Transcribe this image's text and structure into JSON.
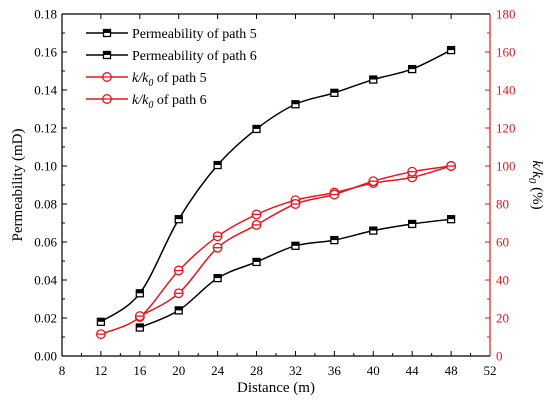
{
  "chart_data": {
    "type": "line",
    "xlabel": "Distance (m)",
    "ylabel_left": "Permeability (mD)",
    "ylabel_right": {
      "base": "k/k",
      "sub": "0",
      "unit": " (%)"
    },
    "xlim": [
      8,
      52
    ],
    "ylim_left": [
      0,
      0.18
    ],
    "ylim_right": [
      0,
      180
    ],
    "x_ticks": [
      8,
      12,
      16,
      20,
      24,
      28,
      32,
      36,
      40,
      44,
      48,
      52
    ],
    "y_left_ticks": [
      "0.00",
      "0.02",
      "0.04",
      "0.06",
      "0.08",
      "0.10",
      "0.12",
      "0.14",
      "0.16",
      "0.18"
    ],
    "y_right_ticks": [
      "0",
      "20",
      "40",
      "60",
      "80",
      "100",
      "120",
      "140",
      "160",
      "180"
    ],
    "grid": false,
    "legend_position": "top-left",
    "x": [
      12,
      16,
      20,
      24,
      28,
      32,
      36,
      40,
      44,
      48
    ],
    "series": [
      {
        "name": "Permeability of path 5",
        "axis": "left",
        "color": "#000000",
        "marker": "square",
        "x": [
          12,
          16,
          20,
          24,
          28,
          32,
          36,
          40,
          44,
          48
        ],
        "values": [
          0.018,
          0.033,
          0.072,
          0.1005,
          0.1195,
          0.1325,
          0.1385,
          0.1455,
          0.151,
          0.161
        ]
      },
      {
        "name": "Permeability of path 6",
        "axis": "left",
        "color": "#000000",
        "marker": "square",
        "x": [
          16,
          20,
          24,
          28,
          32,
          36,
          40,
          44,
          48
        ],
        "values": [
          0.015,
          0.024,
          0.041,
          0.0495,
          0.058,
          0.061,
          0.066,
          0.0695,
          0.072
        ]
      },
      {
        "name_parts": {
          "base": "k/k",
          "sub": "0",
          "rest": " of path 5"
        },
        "axis": "right",
        "color": "#e8141c",
        "marker": "circle",
        "x": [
          12,
          16,
          20,
          24,
          28,
          32,
          36,
          40,
          44,
          48
        ],
        "values": [
          11.5,
          20.5,
          45,
          63,
          74.5,
          82,
          86,
          91,
          94,
          100
        ]
      },
      {
        "name_parts": {
          "base": "k/k",
          "sub": "0",
          "rest": " of path 6"
        },
        "axis": "right",
        "color": "#e8141c",
        "marker": "circle",
        "x": [
          16,
          20,
          24,
          28,
          32,
          36,
          40,
          44,
          48
        ],
        "values": [
          21,
          33,
          57,
          69,
          80,
          85,
          92,
          97,
          100
        ]
      }
    ]
  }
}
